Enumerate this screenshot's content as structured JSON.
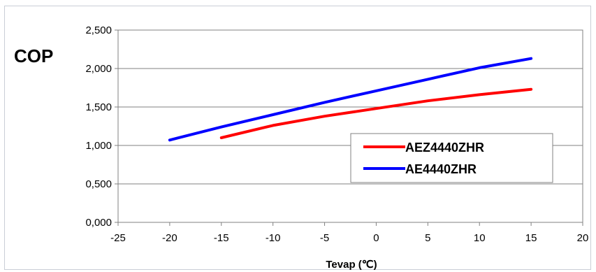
{
  "chart_data": {
    "type": "line",
    "title": "",
    "ylabel": "COP",
    "xlabel": "Tevap (℃)",
    "xlim": [
      -25,
      20
    ],
    "ylim": [
      0,
      2.5
    ],
    "x_ticks": [
      -25,
      -20,
      -15,
      -10,
      -5,
      0,
      5,
      10,
      15,
      20
    ],
    "x_tick_labels": [
      "-25",
      "-20",
      "-15",
      "-10",
      "-5",
      "0",
      "5",
      "10",
      "15",
      "20"
    ],
    "y_ticks": [
      0,
      0.5,
      1.0,
      1.5,
      2.0,
      2.5
    ],
    "y_tick_labels": [
      "0,000",
      "0,500",
      "1,000",
      "1,500",
      "2,000",
      "2,500"
    ],
    "grid": "horizontal",
    "legend_position": "lower-right",
    "series": [
      {
        "name": "AEZ4440ZHR",
        "color": "#ff0000",
        "x": [
          -15,
          -10,
          -5,
          0,
          5,
          10,
          15
        ],
        "y": [
          1.1,
          1.26,
          1.38,
          1.48,
          1.58,
          1.66,
          1.73
        ]
      },
      {
        "name": "AE4440ZHR",
        "color": "#0000ff",
        "x": [
          -20,
          -15,
          -10,
          -5,
          0,
          5,
          10,
          15
        ],
        "y": [
          1.07,
          1.24,
          1.4,
          1.56,
          1.71,
          1.86,
          2.01,
          2.13
        ]
      }
    ]
  }
}
